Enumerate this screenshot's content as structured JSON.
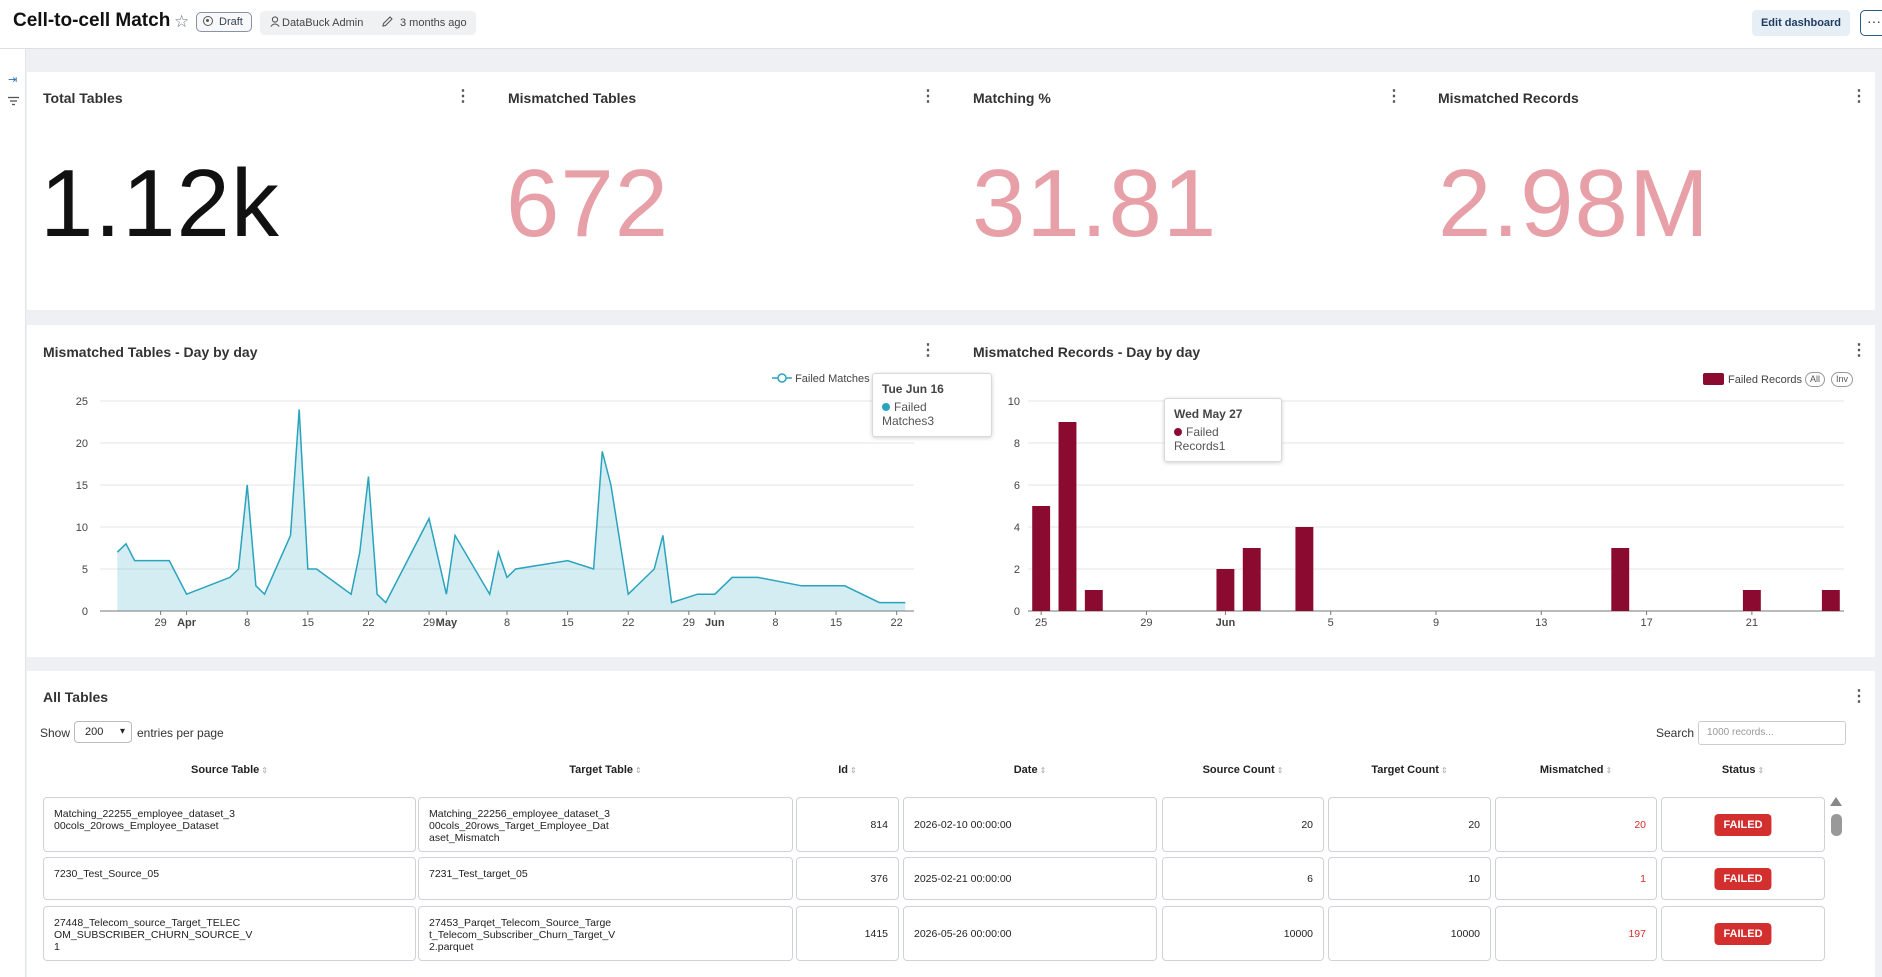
{
  "header": {
    "title": "Cell-to-cell Match",
    "draft_label": "Draft",
    "owner": "DataBuck Admin",
    "edited": "3 months ago",
    "edit_button": "Edit dashboard",
    "more_button": "···"
  },
  "kpis": [
    {
      "title": "Total Tables",
      "value": "1.12k",
      "color": "#111111"
    },
    {
      "title": "Mismatched Tables",
      "value": "672",
      "color": "#e8a0a8"
    },
    {
      "title": "Matching %",
      "value": "31.81",
      "color": "#e8a0a8"
    },
    {
      "title": "Mismatched Records",
      "value": "2.98M",
      "color": "#e8a0a8"
    }
  ],
  "line_panel": {
    "title": "Mismatched Tables - Day by day",
    "legend": "Failed Matches",
    "tooltip_date": "Tue Jun 16",
    "tooltip_label": "Failed Matches",
    "tooltip_value": "3"
  },
  "bar_panel": {
    "title": "Mismatched Records - Day by day",
    "legend": "Failed Records",
    "btn_all": "All",
    "btn_inv": "Inv",
    "tooltip_date": "Wed May 27",
    "tooltip_label": "Failed Records",
    "tooltip_value": "1"
  },
  "chart_data": [
    {
      "type": "area",
      "color": "#2aa3bd",
      "ylim": [
        0,
        25
      ],
      "y_ticks": [
        0,
        5,
        10,
        15,
        20,
        25
      ],
      "x_ticks": [
        "29",
        "Apr",
        "8",
        "15",
        "22",
        "29",
        "May",
        "8",
        "15",
        "22",
        "29",
        "Jun",
        "8",
        "15",
        "22"
      ],
      "series": [
        {
          "name": "Failed Matches",
          "x": [
            "2026-03-24",
            "2026-03-25",
            "2026-03-26",
            "2026-03-30",
            "2026-04-01",
            "2026-04-06",
            "2026-04-07",
            "2026-04-08",
            "2026-04-09",
            "2026-04-10",
            "2026-04-13",
            "2026-04-14",
            "2026-04-15",
            "2026-04-16",
            "2026-04-20",
            "2026-04-21",
            "2026-04-22",
            "2026-04-23",
            "2026-04-24",
            "2026-04-29",
            "2026-05-01",
            "2026-05-02",
            "2026-05-06",
            "2026-05-07",
            "2026-05-08",
            "2026-05-09",
            "2026-05-15",
            "2026-05-18",
            "2026-05-19",
            "2026-05-20",
            "2026-05-22",
            "2026-05-25",
            "2026-05-26",
            "2026-05-27",
            "2026-05-30",
            "2026-06-01",
            "2026-06-02",
            "2026-06-03",
            "2026-06-06",
            "2026-06-11",
            "2026-06-16",
            "2026-06-20",
            "2026-06-23"
          ],
          "values": [
            7,
            8,
            6,
            6,
            2,
            4,
            5,
            15,
            3,
            2,
            9,
            24,
            5,
            5,
            2,
            7,
            16,
            2,
            1,
            11,
            2,
            9,
            2,
            7,
            4,
            5,
            6,
            5,
            19,
            15,
            2,
            5,
            9,
            1,
            2,
            2,
            3,
            4,
            4,
            3,
            3,
            1,
            1
          ]
        }
      ]
    },
    {
      "type": "bar",
      "color": "#8b0a2f",
      "ylim": [
        0,
        10
      ],
      "y_ticks": [
        0,
        2,
        4,
        6,
        8,
        10
      ],
      "x_ticks": [
        "25",
        "29",
        "Jun",
        "5",
        "9",
        "13",
        "17",
        "21"
      ],
      "series": [
        {
          "name": "Failed Records",
          "x": [
            "2026-05-25",
            "2026-05-26",
            "2026-05-27",
            "2026-06-01",
            "2026-06-02",
            "2026-06-04",
            "2026-06-16",
            "2026-06-21",
            "2026-06-24"
          ],
          "values": [
            5,
            9,
            1,
            2,
            3,
            4,
            3,
            1,
            1
          ]
        }
      ]
    }
  ],
  "table": {
    "title": "All Tables",
    "show_label": "Show",
    "page_size": "200",
    "per_page_label": "entries per page",
    "search_label": "Search",
    "search_placeholder": "1000 records...",
    "columns": [
      "Source Table",
      "Target Table",
      "Id",
      "Date",
      "Source Count",
      "Target Count",
      "Mismatched",
      "Status"
    ],
    "rows": [
      {
        "source": "Matching_22255_employee_dataset_3\n00cols_20rows_Employee_Dataset",
        "target": "Matching_22256_employee_dataset_3\n00cols_20rows_Target_Employee_Dat\naset_Mismatch",
        "id": "814",
        "date": "2026-02-10 00:00:00",
        "source_count": "20",
        "target_count": "20",
        "mismatched": "20",
        "status": "FAILED"
      },
      {
        "source": "7230_Test_Source_05",
        "target": "7231_Test_target_05",
        "id": "376",
        "date": "2025-02-21 00:00:00",
        "source_count": "6",
        "target_count": "10",
        "mismatched": "1",
        "status": "FAILED"
      },
      {
        "source": "27448_Telecom_source_Target_TELEC\nOM_SUBSCRIBER_CHURN_SOURCE_V\n1",
        "target": "27453_Parqet_Telecom_Source_Targe\nt_Telecom_Subscriber_Churn_Target_V\n2.parquet",
        "id": "1415",
        "date": "2026-05-26 00:00:00",
        "source_count": "10000",
        "target_count": "10000",
        "mismatched": "197",
        "status": "FAILED"
      }
    ]
  }
}
